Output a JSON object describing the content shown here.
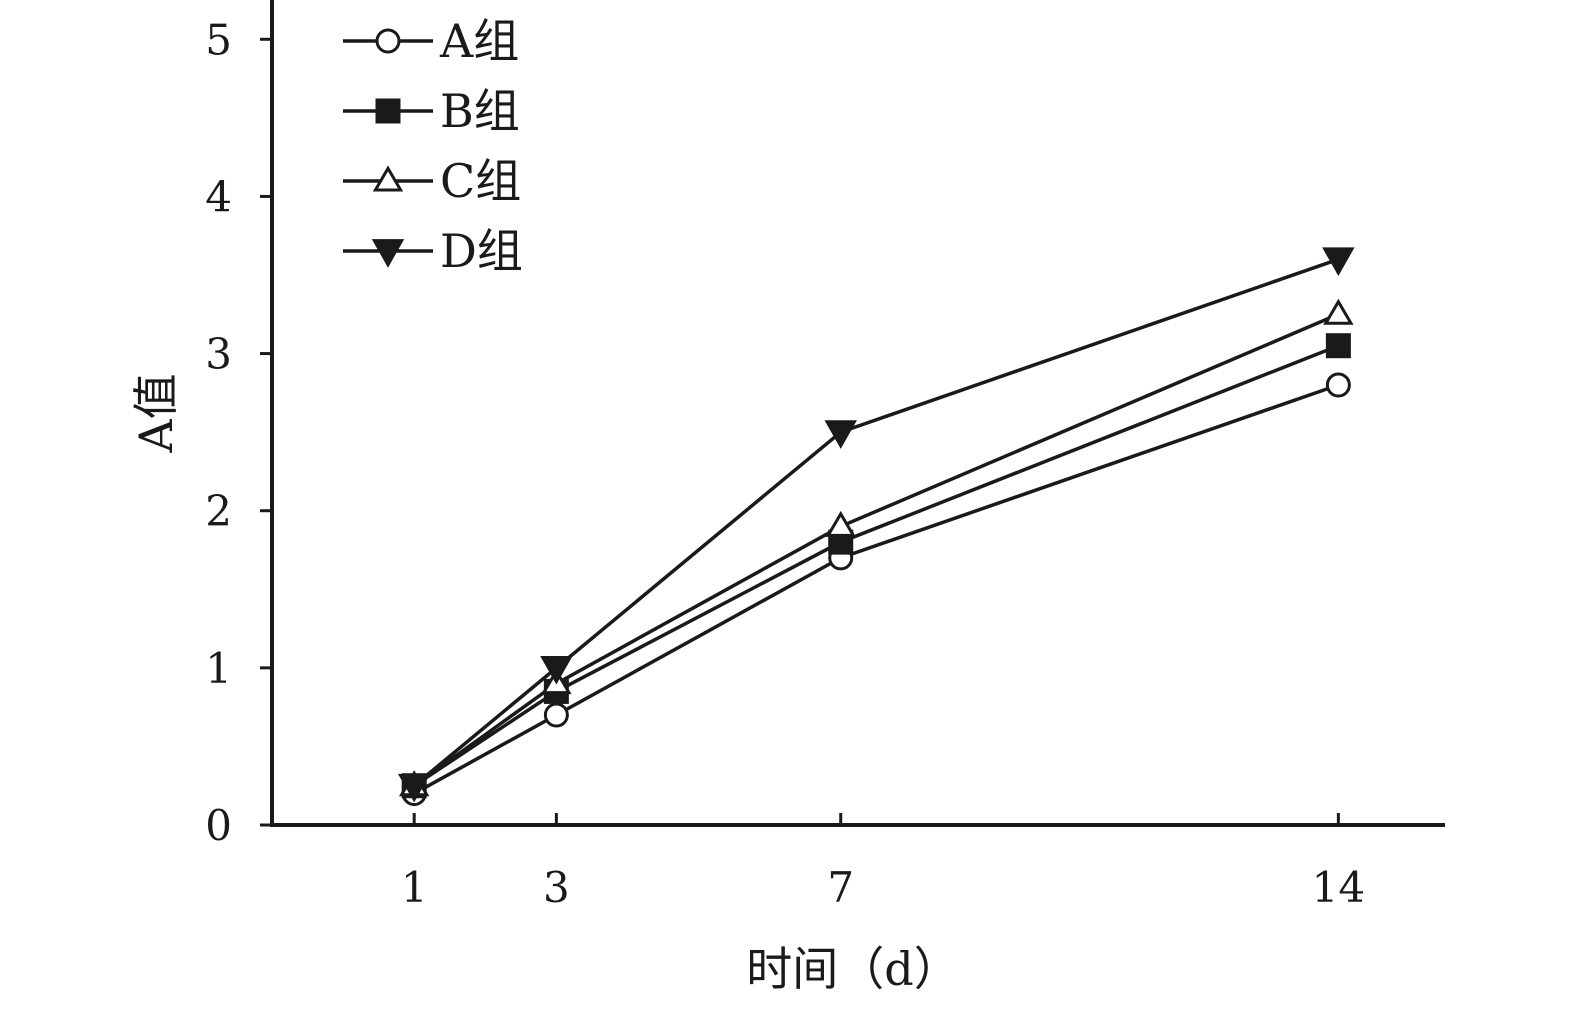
{
  "chart_data": {
    "type": "line",
    "title": "",
    "xlabel": "时间（d）",
    "ylabel": "A值",
    "x": [
      1,
      3,
      7,
      14
    ],
    "x_ticks": [
      "1",
      "3",
      "7",
      "14"
    ],
    "y_ticks": [
      "0",
      "1",
      "2",
      "3",
      "4",
      "5"
    ],
    "ylim": [
      0,
      5.25
    ],
    "xlim": [
      -1,
      15.5
    ],
    "grid": false,
    "legend_position": "top-left",
    "series": [
      {
        "name": "A组",
        "marker": "open-circle",
        "values": [
          0.2,
          0.7,
          1.7,
          2.8
        ]
      },
      {
        "name": "B组",
        "marker": "filled-square",
        "values": [
          0.25,
          0.85,
          1.8,
          3.05
        ]
      },
      {
        "name": "C组",
        "marker": "open-triangle-up",
        "values": [
          0.25,
          0.9,
          1.9,
          3.25
        ]
      },
      {
        "name": "D组",
        "marker": "filled-triangle-down",
        "values": [
          0.25,
          1.0,
          2.5,
          3.6
        ]
      }
    ],
    "colors": {
      "line": "#1a1a1a",
      "fill": "#1a1a1a",
      "background": "#ffffff"
    }
  }
}
